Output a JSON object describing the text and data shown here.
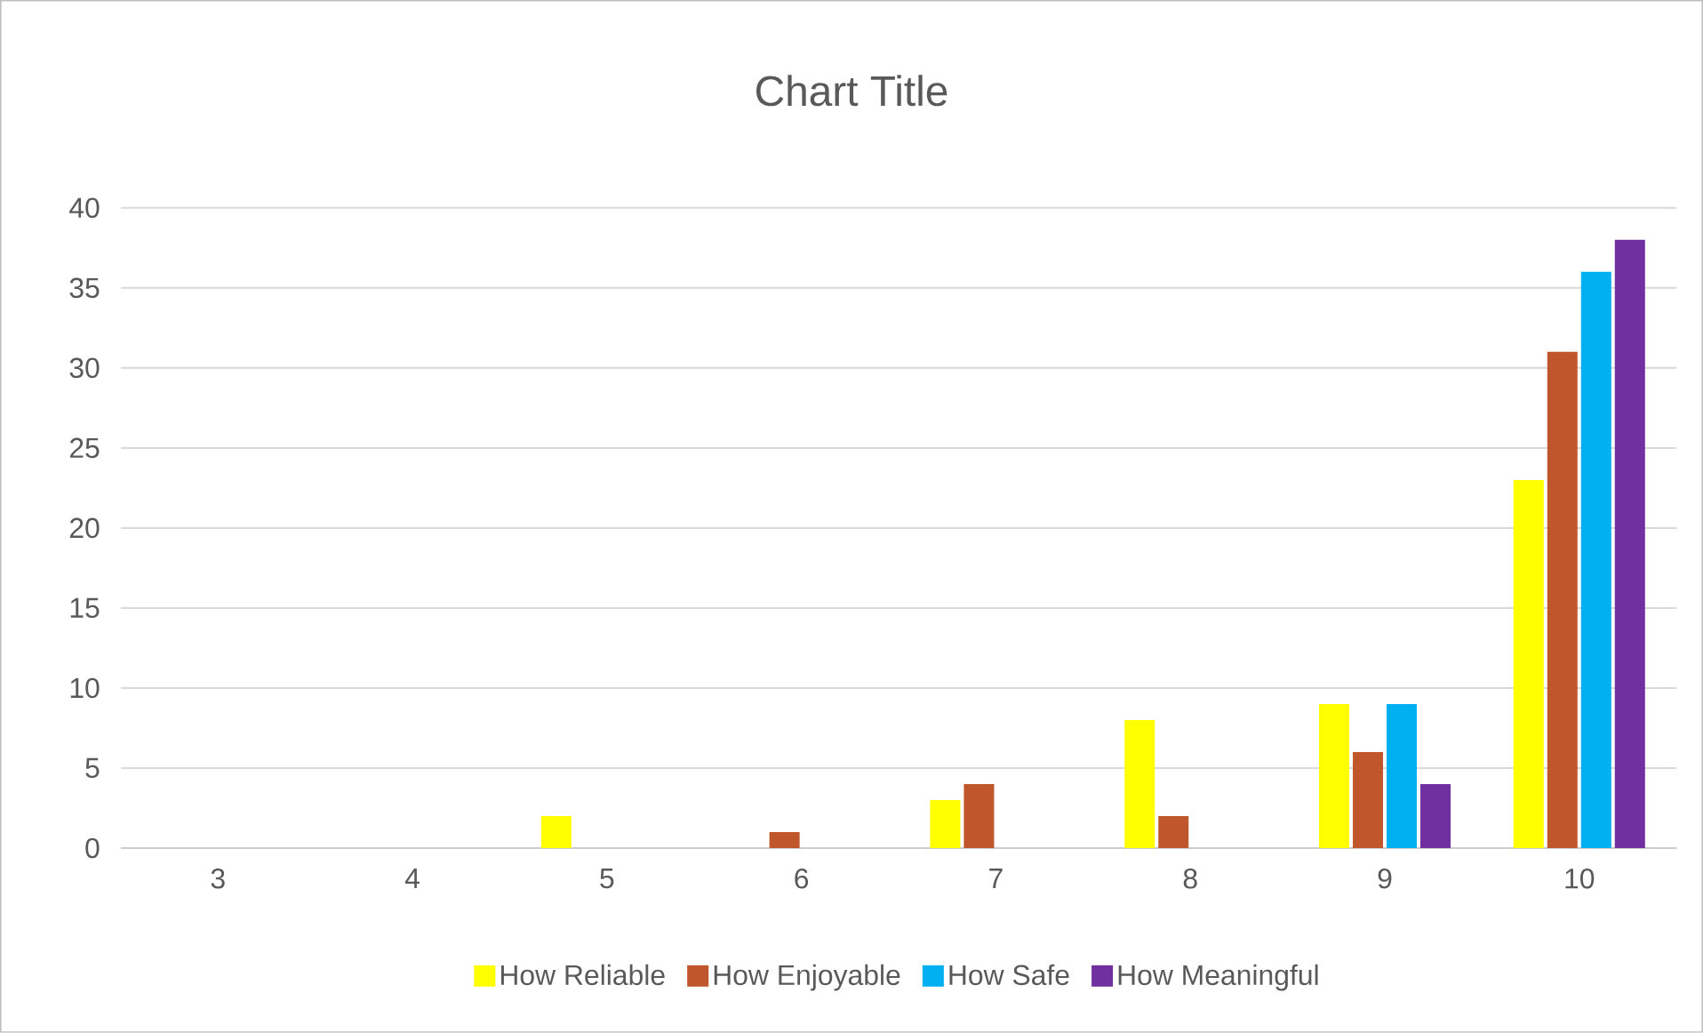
{
  "chart_data": {
    "type": "bar",
    "title": "Chart Title",
    "categories": [
      "3",
      "4",
      "5",
      "6",
      "7",
      "8",
      "9",
      "10"
    ],
    "series": [
      {
        "name": "How Reliable",
        "color": "#ffff00",
        "values": [
          0,
          0,
          2,
          0,
          3,
          8,
          9,
          23
        ]
      },
      {
        "name": "How Enjoyable",
        "color": "#c0562c",
        "values": [
          0,
          0,
          0,
          1,
          4,
          2,
          6,
          31
        ]
      },
      {
        "name": "How Safe",
        "color": "#00b0f0",
        "values": [
          0,
          0,
          0,
          0,
          0,
          0,
          9,
          36
        ]
      },
      {
        "name": "How Meaningful",
        "color": "#7030a0",
        "values": [
          0,
          0,
          0,
          0,
          0,
          0,
          4,
          38
        ]
      }
    ],
    "ylim": [
      0,
      40
    ],
    "yticks": [
      0,
      5,
      10,
      15,
      20,
      25,
      30,
      35,
      40
    ],
    "grid": "y",
    "legend": "bottom"
  }
}
